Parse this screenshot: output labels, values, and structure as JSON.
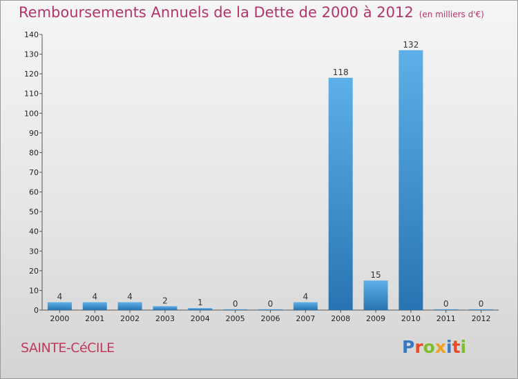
{
  "title": "Remboursements Annuels de la Dette de 2000 à 2012",
  "unit": "(en milliers d'€)",
  "town": "SAINTE-CéCILE",
  "logo": "Proxiti",
  "colors": {
    "title": "#b3346a",
    "bar_light": "#5aaee6",
    "bar_dark": "#2a76b4",
    "logo": [
      "#3a78c0",
      "#e84a28",
      "#7bbd2a",
      "#f0a020",
      "#3a78c0",
      "#e84a28",
      "#7bbd2a"
    ]
  },
  "chart_data": {
    "type": "bar",
    "title": "Remboursements Annuels de la Dette de 2000 à 2012",
    "ylabel": "",
    "xlabel": "",
    "categories": [
      "2000",
      "2001",
      "2002",
      "2003",
      "2004",
      "2005",
      "2006",
      "2007",
      "2008",
      "2009",
      "2010",
      "2011",
      "2012"
    ],
    "values": [
      4,
      4,
      4,
      2,
      1,
      0,
      0,
      4,
      118,
      15,
      132,
      0,
      0
    ],
    "ylim": [
      0,
      140
    ],
    "yticks": [
      0,
      10,
      20,
      30,
      40,
      50,
      60,
      70,
      80,
      90,
      100,
      110,
      120,
      130,
      140
    ],
    "grid": false
  }
}
